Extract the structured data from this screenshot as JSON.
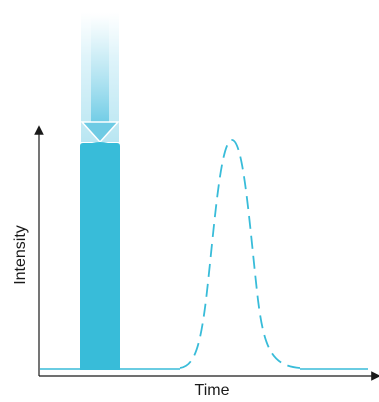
{
  "axes": {
    "x_label": "Time",
    "y_label": "Intensity"
  },
  "colors": {
    "pulse": "#38bcd9",
    "pulse_light": "#cdeef7",
    "arrow": "#8fd6ea",
    "curve": "#38bcd9",
    "axis": "#1a1a1a"
  },
  "icons": {
    "arrow": "down-arrow-icon"
  }
}
